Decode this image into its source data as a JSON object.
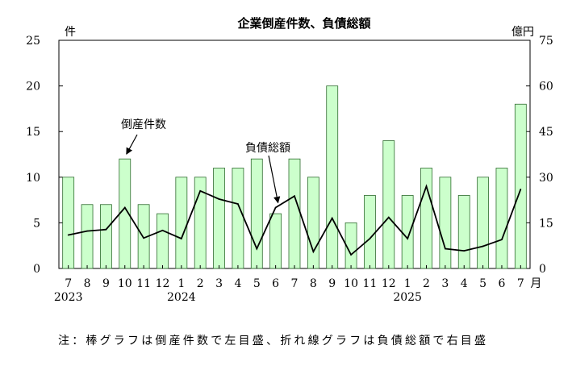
{
  "chart_data": {
    "type": "bar+line",
    "title": "企業倒産件数、負債総額",
    "categories": [
      "7",
      "8",
      "9",
      "10",
      "11",
      "12",
      "1",
      "2",
      "3",
      "4",
      "5",
      "6",
      "7",
      "8",
      "9",
      "10",
      "11",
      "12",
      "1",
      "2",
      "3",
      "4",
      "5",
      "6",
      "7"
    ],
    "year_labels": [
      {
        "index": 0,
        "label": "2023"
      },
      {
        "index": 6,
        "label": "2024"
      },
      {
        "index": 18,
        "label": "2025"
      }
    ],
    "x_unit": "月",
    "series": [
      {
        "name": "倒産件数",
        "type": "bar",
        "axis": "left",
        "values": [
          10,
          7,
          7,
          12,
          7,
          6,
          10,
          10,
          11,
          11,
          12,
          6,
          12,
          10,
          20,
          5,
          8,
          14,
          8,
          11,
          10,
          8,
          10,
          11,
          18
        ]
      },
      {
        "name": "負債総額",
        "type": "line",
        "axis": "right",
        "values": [
          11,
          12.3,
          12.8,
          20,
          10,
          12.5,
          9.8,
          25.5,
          22.8,
          21.2,
          6.5,
          20,
          23.8,
          5.5,
          16.5,
          4.5,
          9.8,
          16.8,
          9.8,
          27,
          6.5,
          5.8,
          7.3,
          9.5,
          26
        ]
      }
    ],
    "left_axis": {
      "unit": "件",
      "ylim": [
        0,
        25
      ],
      "ticks": [
        0,
        5,
        10,
        15,
        20,
        25
      ]
    },
    "right_axis": {
      "unit": "億円",
      "ylim": [
        0,
        75
      ],
      "ticks": [
        0,
        15,
        30,
        45,
        60,
        75
      ]
    },
    "annotations": [
      {
        "text": "倒産件数",
        "target_series": 0,
        "target_index": 3
      },
      {
        "text": "負債総額",
        "target_series": 1,
        "target_index": 11
      }
    ],
    "grid": false,
    "colors": {
      "bar_fill": "#ccffcc",
      "bar_stroke": "#2f6b2f",
      "line": "#000000",
      "axis": "#000000"
    }
  },
  "note": "注：棒グラフは倒産件数で左目盛、折れ線グラフは負債総額で右目盛"
}
